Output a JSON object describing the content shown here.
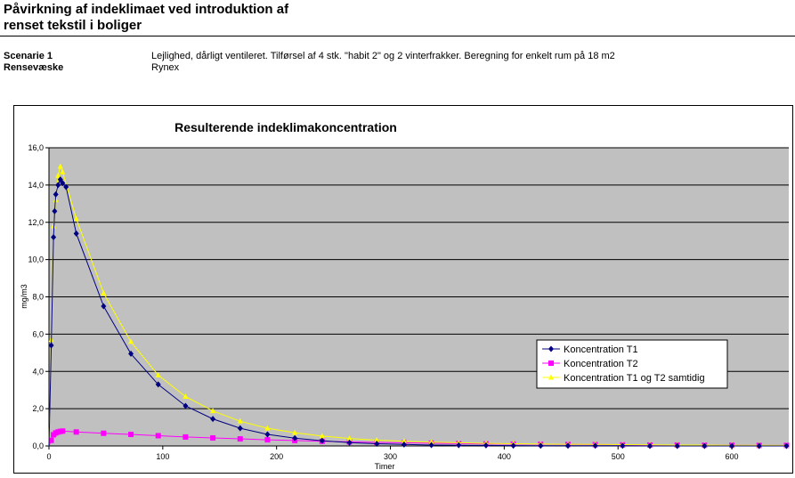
{
  "header": {
    "title_line1": "Påvirkning af indeklimaet ved introduktion af",
    "title_line2": "renset tekstil i boliger"
  },
  "info": {
    "scenario_label": "Scenarie 1",
    "scenario_text": "Lejlighed, dårligt ventileret. Tilførsel af 4 stk. \"habit 2\" og 2 vinterfrakker. Beregning for enkelt rum på 18 m2",
    "agent_label": "Rensevæske",
    "agent_text": "Rynex"
  },
  "chart_data": {
    "type": "line",
    "title": "Resulterende indeklimakoncentration",
    "xlabel": "Timer",
    "ylabel": "mg/m3",
    "xlim": [
      0,
      650
    ],
    "ylim": [
      0,
      16
    ],
    "xticks": [
      0,
      100,
      200,
      300,
      400,
      500,
      600
    ],
    "yticks": [
      0,
      2,
      4,
      6,
      8,
      10,
      12,
      14,
      16
    ],
    "ytick_labels": [
      "0,0",
      "2,0",
      "4,0",
      "6,0",
      "8,0",
      "10,0",
      "12,0",
      "14,0",
      "16,0"
    ],
    "plot_background": "#c0c0c0",
    "grid": "horizontal",
    "legend_position": "center-right",
    "series": [
      {
        "name": "Koncentration T1",
        "color": "#000080",
        "marker": "diamond",
        "points": [
          [
            0,
            0
          ],
          [
            2,
            5.4
          ],
          [
            4,
            11.2
          ],
          [
            5,
            12.6
          ],
          [
            6,
            13.5
          ],
          [
            8,
            14.0
          ],
          [
            10,
            14.3
          ],
          [
            12,
            14.1
          ],
          [
            15,
            13.9
          ],
          [
            24,
            11.4
          ],
          [
            48,
            7.5
          ],
          [
            72,
            4.95
          ],
          [
            96,
            3.3
          ],
          [
            120,
            2.15
          ],
          [
            144,
            1.45
          ],
          [
            168,
            0.95
          ],
          [
            192,
            0.62
          ],
          [
            216,
            0.42
          ],
          [
            240,
            0.28
          ],
          [
            264,
            0.18
          ],
          [
            288,
            0.12
          ],
          [
            312,
            0.08
          ],
          [
            336,
            0.05
          ],
          [
            360,
            0.04
          ],
          [
            384,
            0.03
          ],
          [
            408,
            0.02
          ],
          [
            432,
            0.01
          ],
          [
            456,
            0.01
          ],
          [
            480,
            0.01
          ],
          [
            504,
            0.01
          ],
          [
            528,
            0.0
          ],
          [
            552,
            0.0
          ],
          [
            576,
            0.0
          ],
          [
            600,
            0.0
          ],
          [
            624,
            0.0
          ],
          [
            648,
            0.0
          ]
        ]
      },
      {
        "name": "Koncentration T2",
        "color": "#ff00ff",
        "marker": "square",
        "points": [
          [
            0,
            0
          ],
          [
            2,
            0.3
          ],
          [
            4,
            0.6
          ],
          [
            6,
            0.7
          ],
          [
            8,
            0.75
          ],
          [
            10,
            0.78
          ],
          [
            12,
            0.8
          ],
          [
            24,
            0.75
          ],
          [
            48,
            0.68
          ],
          [
            72,
            0.62
          ],
          [
            96,
            0.55
          ],
          [
            120,
            0.48
          ],
          [
            144,
            0.43
          ],
          [
            168,
            0.38
          ],
          [
            192,
            0.33
          ],
          [
            216,
            0.29
          ],
          [
            240,
            0.25
          ],
          [
            264,
            0.22
          ],
          [
            288,
            0.19
          ],
          [
            312,
            0.17
          ],
          [
            336,
            0.15
          ],
          [
            360,
            0.13
          ],
          [
            384,
            0.11
          ],
          [
            408,
            0.1
          ],
          [
            432,
            0.09
          ],
          [
            456,
            0.08
          ],
          [
            480,
            0.07
          ],
          [
            504,
            0.06
          ],
          [
            528,
            0.05
          ],
          [
            552,
            0.05
          ],
          [
            576,
            0.04
          ],
          [
            600,
            0.04
          ],
          [
            624,
            0.03
          ],
          [
            648,
            0.03
          ]
        ]
      },
      {
        "name": "Koncentration T1 og T2 samtidig",
        "color": "#ffff00",
        "marker": "triangle",
        "points": [
          [
            0,
            0
          ],
          [
            2,
            5.7
          ],
          [
            4,
            11.8
          ],
          [
            6,
            13.2
          ],
          [
            8,
            14.5
          ],
          [
            10,
            15.0
          ],
          [
            12,
            14.7
          ],
          [
            24,
            12.2
          ],
          [
            48,
            8.2
          ],
          [
            72,
            5.6
          ],
          [
            96,
            3.8
          ],
          [
            120,
            2.65
          ],
          [
            144,
            1.88
          ],
          [
            168,
            1.33
          ],
          [
            192,
            0.95
          ],
          [
            216,
            0.71
          ],
          [
            240,
            0.53
          ],
          [
            264,
            0.4
          ],
          [
            288,
            0.31
          ],
          [
            312,
            0.25
          ],
          [
            336,
            0.2
          ],
          [
            360,
            0.17
          ],
          [
            384,
            0.14
          ],
          [
            408,
            0.12
          ],
          [
            432,
            0.1
          ],
          [
            456,
            0.09
          ],
          [
            480,
            0.08
          ],
          [
            504,
            0.07
          ],
          [
            528,
            0.06
          ],
          [
            552,
            0.05
          ],
          [
            576,
            0.05
          ],
          [
            600,
            0.04
          ],
          [
            624,
            0.04
          ],
          [
            648,
            0.03
          ]
        ]
      }
    ]
  }
}
